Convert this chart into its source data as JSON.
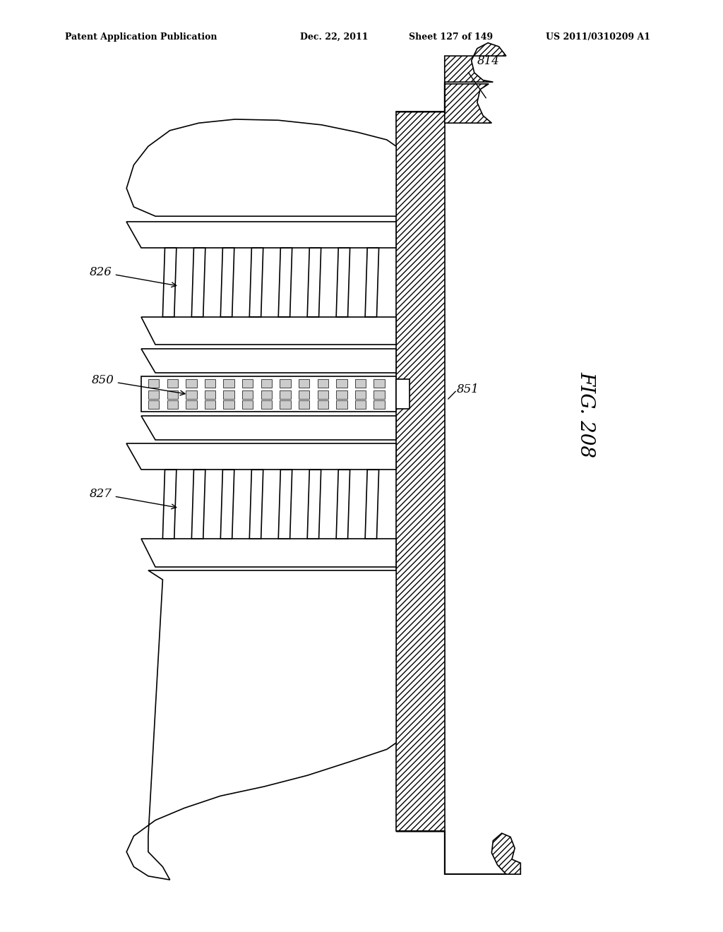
{
  "bg_color": "#ffffff",
  "line_color": "#000000",
  "header_text": "Patent Application Publication",
  "header_date": "Dec. 22, 2011",
  "header_sheet": "Sheet 127 of 149",
  "header_patent": "US 2011/0310209 A1",
  "fig_label": "FIG. 208"
}
